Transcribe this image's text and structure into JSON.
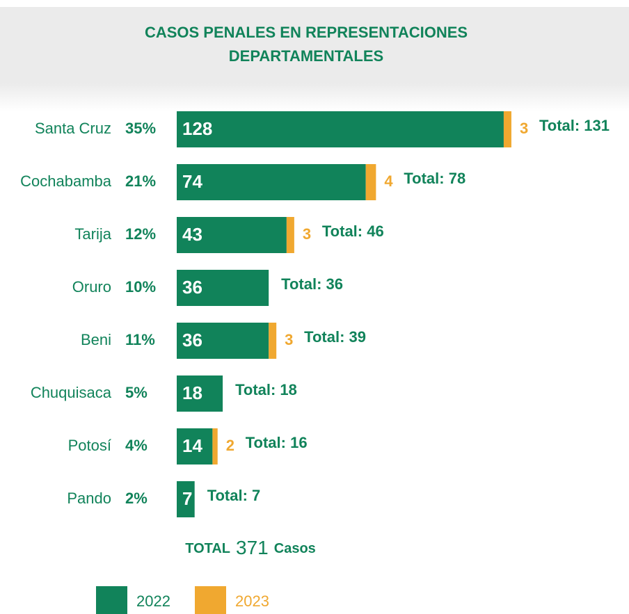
{
  "chart_data": {
    "type": "stacked_barh",
    "title": [
      "CASOS PENALES EN REPRESENTACIONES",
      "DEPARTAMENTALES"
    ],
    "categories": [
      "Santa Cruz",
      "Cochabamba",
      "Tarija",
      "Oruro",
      "Beni",
      "Chuquisaca",
      "Potosí",
      "Pando"
    ],
    "percent_labels": [
      "35%",
      "21%",
      "12%",
      "10%",
      "11%",
      "5%",
      "4%",
      "2%"
    ],
    "series": [
      {
        "name": "2022",
        "color": "#11835a",
        "values": [
          128,
          74,
          43,
          36,
          36,
          18,
          14,
          7
        ]
      },
      {
        "name": "2023",
        "color": "#f0a830",
        "values": [
          3,
          4,
          3,
          null,
          3,
          null,
          2,
          null
        ]
      }
    ],
    "total_labels": [
      "Total: 131",
      "Total: 78",
      "Total: 46",
      "Total: 36",
      "Total: 39",
      "Total: 18",
      "Total: 16",
      "Total: 7"
    ],
    "xlim": [
      0,
      140
    ],
    "grand_total": {
      "label": "TOTAL",
      "value": 371,
      "unit": "Casos"
    }
  }
}
